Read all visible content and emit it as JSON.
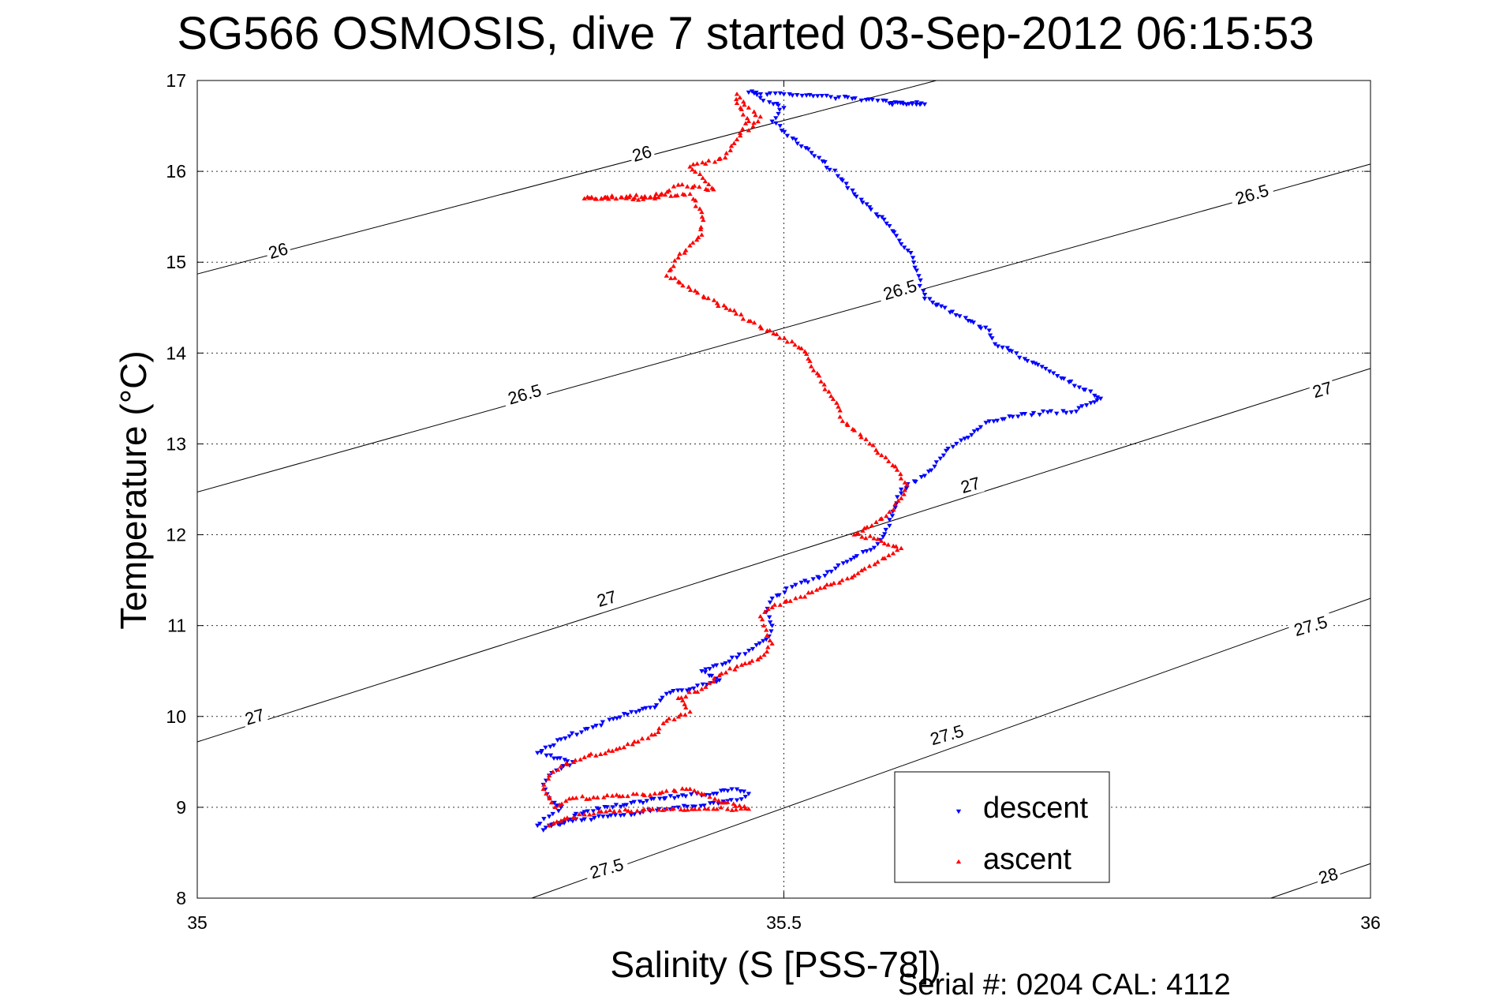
{
  "chart_data": {
    "type": "scatter",
    "title": "SG566 OSMOSIS, dive 7 started 03-Sep-2012 06:15:53",
    "xlabel": "Salinity (S [PSS-78])",
    "ylabel": "Temperature (°C)",
    "xlim": [
      35,
      36
    ],
    "ylim": [
      8,
      17
    ],
    "x_ticks": [
      "35",
      "35.5",
      "36"
    ],
    "y_ticks": [
      "8",
      "9",
      "10",
      "11",
      "12",
      "13",
      "14",
      "15",
      "16",
      "17"
    ],
    "grid": true,
    "legend_position": "bottom-right",
    "footer": "Serial #: 0204  CAL: 4112",
    "isopycnals": [
      {
        "sigma": "26",
        "points": [
          [
            35,
            14.87
          ],
          [
            35.63,
            17
          ]
        ]
      },
      {
        "sigma": "26.5",
        "points": [
          [
            35,
            12.47
          ],
          [
            36,
            16.08
          ]
        ]
      },
      {
        "sigma": "27",
        "points": [
          [
            35,
            9.72
          ],
          [
            36,
            13.83
          ]
        ]
      },
      {
        "sigma": "27.5",
        "points": [
          [
            35.285,
            8
          ],
          [
            36,
            11.3
          ]
        ]
      },
      {
        "sigma": "28",
        "points": [
          [
            35.915,
            8
          ],
          [
            36,
            8.38
          ]
        ]
      }
    ],
    "contour_labels": [
      {
        "text": "26",
        "x": 35.07,
        "y": 15.08
      },
      {
        "text": "26",
        "x": 35.38,
        "y": 16.15
      },
      {
        "text": "26.5",
        "x": 35.28,
        "y": 13.5
      },
      {
        "text": "26.5",
        "x": 35.6,
        "y": 14.65
      },
      {
        "text": "26.5",
        "x": 35.9,
        "y": 15.7
      },
      {
        "text": "27",
        "x": 35.05,
        "y": 9.95
      },
      {
        "text": "27",
        "x": 35.35,
        "y": 11.25
      },
      {
        "text": "27",
        "x": 35.66,
        "y": 12.5
      },
      {
        "text": "27",
        "x": 35.96,
        "y": 13.55
      },
      {
        "text": "27.5",
        "x": 35.35,
        "y": 8.28
      },
      {
        "text": "27.5",
        "x": 35.64,
        "y": 9.75
      },
      {
        "text": "27.5",
        "x": 35.95,
        "y": 10.95
      },
      {
        "text": "28",
        "x": 35.965,
        "y": 8.2
      }
    ],
    "series": [
      {
        "name": "descent",
        "color": "#0000ff",
        "marker": "triangle-down",
        "path": [
          [
            35.59,
            16.75
          ],
          [
            35.62,
            16.74
          ],
          [
            35.58,
            16.78
          ],
          [
            35.54,
            16.82
          ],
          [
            35.5,
            16.85
          ],
          [
            35.47,
            16.87
          ],
          [
            35.5,
            16.7
          ],
          [
            35.49,
            16.55
          ],
          [
            35.51,
            16.35
          ],
          [
            35.53,
            16.15
          ],
          [
            35.55,
            15.9
          ],
          [
            35.56,
            15.75
          ],
          [
            35.59,
            15.4
          ],
          [
            35.6,
            15.2
          ],
          [
            35.61,
            15.05
          ],
          [
            35.615,
            14.85
          ],
          [
            35.62,
            14.6
          ],
          [
            35.675,
            14.25
          ],
          [
            35.68,
            14.1
          ],
          [
            35.72,
            13.85
          ],
          [
            35.77,
            13.5
          ],
          [
            35.745,
            13.35
          ],
          [
            35.725,
            13.35
          ],
          [
            35.695,
            13.3
          ],
          [
            35.675,
            13.25
          ],
          [
            35.66,
            13.1
          ],
          [
            35.64,
            12.95
          ],
          [
            35.63,
            12.8
          ],
          [
            35.62,
            12.65
          ],
          [
            35.6,
            12.5
          ],
          [
            35.595,
            12.3
          ],
          [
            35.59,
            12.1
          ],
          [
            35.58,
            11.9
          ],
          [
            35.56,
            11.75
          ],
          [
            35.535,
            11.55
          ],
          [
            35.51,
            11.45
          ],
          [
            35.49,
            11.3
          ],
          [
            35.485,
            11.15
          ],
          [
            35.49,
            11.0
          ],
          [
            35.485,
            10.85
          ],
          [
            35.46,
            10.65
          ],
          [
            35.43,
            10.5
          ],
          [
            35.445,
            10.4
          ],
          [
            35.42,
            10.3
          ],
          [
            35.4,
            10.25
          ],
          [
            35.39,
            10.1
          ],
          [
            35.37,
            10.05
          ],
          [
            35.34,
            9.9
          ],
          [
            35.31,
            9.75
          ],
          [
            35.29,
            9.6
          ],
          [
            35.32,
            9.5
          ],
          [
            35.3,
            9.35
          ],
          [
            35.295,
            9.25
          ],
          [
            35.3,
            9.1
          ],
          [
            35.31,
            9.0
          ],
          [
            35.3,
            8.9
          ],
          [
            35.29,
            8.8
          ],
          [
            35.295,
            8.75
          ],
          [
            35.33,
            8.95
          ],
          [
            35.37,
            9.05
          ],
          [
            35.41,
            9.12
          ],
          [
            35.44,
            9.15
          ],
          [
            35.46,
            9.2
          ],
          [
            35.47,
            9.15
          ],
          [
            35.46,
            9.08
          ],
          [
            35.44,
            9.05
          ],
          [
            35.41,
            9.0
          ],
          [
            35.38,
            8.95
          ],
          [
            35.35,
            8.9
          ],
          [
            35.32,
            8.85
          ],
          [
            35.3,
            8.8
          ]
        ]
      },
      {
        "name": "ascent",
        "color": "#ff0000",
        "marker": "triangle-up",
        "path": [
          [
            35.3,
            8.8
          ],
          [
            35.31,
            8.85
          ],
          [
            35.33,
            8.92
          ],
          [
            35.36,
            8.96
          ],
          [
            35.4,
            8.98
          ],
          [
            35.44,
            8.98
          ],
          [
            35.47,
            8.98
          ],
          [
            35.45,
            9.05
          ],
          [
            35.42,
            9.2
          ],
          [
            35.39,
            9.15
          ],
          [
            35.36,
            9.12
          ],
          [
            35.32,
            9.1
          ],
          [
            35.305,
            9.0
          ],
          [
            35.295,
            9.2
          ],
          [
            35.3,
            9.35
          ],
          [
            35.31,
            9.45
          ],
          [
            35.33,
            9.55
          ],
          [
            35.36,
            9.65
          ],
          [
            35.39,
            9.8
          ],
          [
            35.4,
            9.95
          ],
          [
            35.42,
            10.05
          ],
          [
            35.41,
            10.2
          ],
          [
            35.43,
            10.3
          ],
          [
            35.445,
            10.45
          ],
          [
            35.46,
            10.55
          ],
          [
            35.48,
            10.65
          ],
          [
            35.49,
            10.8
          ],
          [
            35.485,
            10.95
          ],
          [
            35.48,
            11.1
          ],
          [
            35.49,
            11.2
          ],
          [
            35.51,
            11.3
          ],
          [
            35.54,
            11.45
          ],
          [
            35.56,
            11.55
          ],
          [
            35.58,
            11.7
          ],
          [
            35.6,
            11.85
          ],
          [
            35.58,
            11.95
          ],
          [
            35.56,
            12.0
          ],
          [
            35.575,
            12.1
          ],
          [
            35.59,
            12.25
          ],
          [
            35.6,
            12.4
          ],
          [
            35.605,
            12.55
          ],
          [
            35.595,
            12.75
          ],
          [
            35.58,
            12.9
          ],
          [
            35.57,
            13.05
          ],
          [
            35.55,
            13.25
          ],
          [
            35.545,
            13.45
          ],
          [
            35.535,
            13.6
          ],
          [
            35.53,
            13.75
          ],
          [
            35.515,
            14.05
          ],
          [
            35.4,
            14.85
          ],
          [
            35.41,
            15.05
          ],
          [
            35.43,
            15.3
          ],
          [
            35.43,
            15.55
          ],
          [
            35.42,
            15.75
          ],
          [
            35.33,
            15.7
          ],
          [
            35.39,
            15.7
          ],
          [
            35.41,
            15.85
          ],
          [
            35.44,
            15.8
          ],
          [
            35.42,
            16.05
          ],
          [
            35.45,
            16.15
          ],
          [
            35.46,
            16.35
          ],
          [
            35.47,
            16.55
          ],
          [
            35.46,
            16.75
          ],
          [
            35.46,
            16.85
          ],
          [
            35.47,
            16.7
          ],
          [
            35.48,
            16.6
          ],
          [
            35.47,
            16.45
          ]
        ]
      }
    ]
  }
}
